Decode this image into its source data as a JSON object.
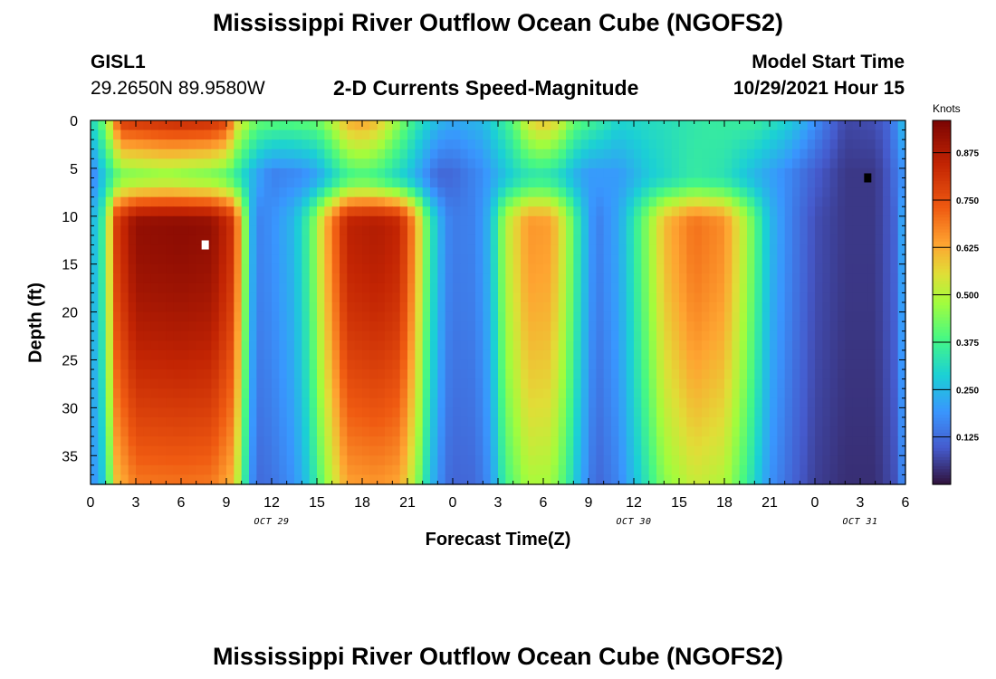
{
  "header": {
    "title": "Mississippi River Outflow Ocean Cube (NGOFS2)",
    "station": "GISL1",
    "coords": "29.2650N  89.9580W",
    "model_start_label": "Model Start Time",
    "model_start_value": "10/29/2021 Hour 15"
  },
  "footer": {
    "title": "Mississippi River Outflow Ocean Cube (NGOFS2)"
  },
  "chart_data": {
    "type": "heatmap",
    "title": "2-D Currents Speed-Magnitude",
    "xlabel": "Forecast Time(Z)",
    "ylabel": "Depth (ft)",
    "x_range_hours": [
      0,
      54
    ],
    "x_ticks": [
      "0",
      "3",
      "6",
      "9",
      "12",
      "15",
      "18",
      "21",
      "0",
      "3",
      "6",
      "9",
      "12",
      "15",
      "18",
      "21",
      "0",
      "3",
      "6"
    ],
    "date_labels": [
      {
        "label": "OCT 29",
        "hour": 12
      },
      {
        "label": "OCT 30",
        "hour": 36
      },
      {
        "label": "OCT 31",
        "hour": 51
      }
    ],
    "y_range": [
      0,
      38
    ],
    "y_ticks": [
      0,
      5,
      10,
      15,
      20,
      25,
      30,
      35
    ],
    "y_inverted": true,
    "colorbar": {
      "units": "Knots",
      "min": 0,
      "max": 0.96,
      "ticks": [
        "0.125",
        "0.250",
        "0.375",
        "0.500",
        "0.625",
        "0.750",
        "0.875"
      ],
      "colormap": "turbo"
    },
    "markers": [
      {
        "hour": 7.6,
        "depth": 13,
        "color": "#ffffff"
      },
      {
        "hour": 51.5,
        "depth": 6,
        "color": "#000000"
      }
    ],
    "surface_profile": [
      [
        0,
        0.3
      ],
      [
        1,
        0.45
      ],
      [
        2,
        0.8
      ],
      [
        4,
        0.82
      ],
      [
        6,
        0.84
      ],
      [
        8,
        0.83
      ],
      [
        9,
        0.78
      ],
      [
        9.8,
        0.55
      ],
      [
        11,
        0.42
      ],
      [
        13,
        0.4
      ],
      [
        15,
        0.42
      ],
      [
        16,
        0.5
      ],
      [
        17,
        0.62
      ],
      [
        18,
        0.64
      ],
      [
        19,
        0.6
      ],
      [
        20,
        0.5
      ],
      [
        21.5,
        0.35
      ],
      [
        23,
        0.25
      ],
      [
        24,
        0.22
      ],
      [
        26,
        0.25
      ],
      [
        28,
        0.4
      ],
      [
        29,
        0.55
      ],
      [
        30,
        0.6
      ],
      [
        31,
        0.55
      ],
      [
        32,
        0.42
      ],
      [
        35,
        0.3
      ],
      [
        38,
        0.32
      ],
      [
        41,
        0.35
      ],
      [
        44,
        0.36
      ],
      [
        46,
        0.3
      ],
      [
        47,
        0.25
      ],
      [
        49,
        0.12
      ],
      [
        50,
        0.07
      ],
      [
        52,
        0.08
      ],
      [
        53,
        0.12
      ],
      [
        54,
        0.28
      ]
    ],
    "mid_profile": [
      [
        0,
        0.15
      ],
      [
        1,
        0.3
      ],
      [
        2,
        0.45
      ],
      [
        5,
        0.48
      ],
      [
        8,
        0.45
      ],
      [
        9,
        0.42
      ],
      [
        10,
        0.32
      ],
      [
        11,
        0.22
      ],
      [
        12,
        0.16
      ],
      [
        14,
        0.18
      ],
      [
        15,
        0.22
      ],
      [
        16,
        0.3
      ],
      [
        17,
        0.38
      ],
      [
        18,
        0.4
      ],
      [
        19,
        0.38
      ],
      [
        20,
        0.33
      ],
      [
        21,
        0.28
      ],
      [
        22,
        0.2
      ],
      [
        23,
        0.12
      ],
      [
        24,
        0.12
      ],
      [
        26,
        0.18
      ],
      [
        28,
        0.3
      ],
      [
        29,
        0.34
      ],
      [
        30,
        0.35
      ],
      [
        31,
        0.32
      ],
      [
        32,
        0.25
      ],
      [
        33,
        0.2
      ],
      [
        35,
        0.2
      ],
      [
        37,
        0.28
      ],
      [
        40,
        0.35
      ],
      [
        42,
        0.33
      ],
      [
        44,
        0.25
      ],
      [
        46,
        0.18
      ],
      [
        48,
        0.1
      ],
      [
        50,
        0.05
      ],
      [
        52,
        0.05
      ],
      [
        53,
        0.1
      ],
      [
        54,
        0.2
      ]
    ],
    "deep_profile": [
      [
        0,
        0.22
      ],
      [
        1,
        0.4
      ],
      [
        1.6,
        0.78
      ],
      [
        3,
        0.92
      ],
      [
        6,
        0.93
      ],
      [
        8,
        0.92
      ],
      [
        9.3,
        0.82
      ],
      [
        10,
        0.6
      ],
      [
        10.5,
        0.3
      ],
      [
        11,
        0.16
      ],
      [
        12,
        0.18
      ],
      [
        13.5,
        0.25
      ],
      [
        14.5,
        0.38
      ],
      [
        15.5,
        0.6
      ],
      [
        17,
        0.85
      ],
      [
        19,
        0.87
      ],
      [
        20.5,
        0.84
      ],
      [
        21.5,
        0.65
      ],
      [
        22.5,
        0.35
      ],
      [
        23.5,
        0.18
      ],
      [
        24,
        0.15
      ],
      [
        25.5,
        0.16
      ],
      [
        26.5,
        0.25
      ],
      [
        27.5,
        0.5
      ],
      [
        29,
        0.65
      ],
      [
        30.5,
        0.64
      ],
      [
        31.5,
        0.5
      ],
      [
        32.5,
        0.3
      ],
      [
        33.5,
        0.15
      ],
      [
        35,
        0.22
      ],
      [
        36.5,
        0.4
      ],
      [
        38,
        0.6
      ],
      [
        40,
        0.7
      ],
      [
        42,
        0.66
      ],
      [
        43.5,
        0.48
      ],
      [
        45,
        0.25
      ],
      [
        46.5,
        0.15
      ],
      [
        48,
        0.08
      ],
      [
        50,
        0.05
      ],
      [
        52,
        0.05
      ],
      [
        53.5,
        0.12
      ],
      [
        54,
        0.3
      ]
    ]
  }
}
